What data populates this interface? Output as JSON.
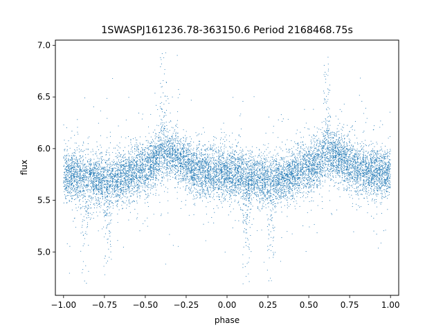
{
  "chart_data": {
    "type": "scatter",
    "title": "1SWASPJ161236.78-363150.6 Period 2168468.75s",
    "xlabel": "phase",
    "ylabel": "flux",
    "xlim": [
      -1.05,
      1.05
    ],
    "ylim": [
      4.58,
      7.05
    ],
    "xticks": [
      -1.0,
      -0.75,
      -0.5,
      -0.25,
      0.0,
      0.25,
      0.5,
      0.75,
      1.0
    ],
    "xtick_labels": [
      "−1.00",
      "−0.75",
      "−0.50",
      "−0.25",
      "0.00",
      "0.25",
      "0.50",
      "0.75",
      "1.00"
    ],
    "yticks": [
      5.0,
      5.5,
      6.0,
      6.5,
      7.0
    ],
    "ytick_labels": [
      "5.0",
      "5.5",
      "6.0",
      "6.5",
      "7.0"
    ],
    "grid": false,
    "series": [
      {
        "color": "#1f77b4",
        "marker_size": 1,
        "point_count_approx": 12000,
        "baseline_profile": {
          "phase": [
            0.0,
            0.05,
            0.1,
            0.15,
            0.2,
            0.25,
            0.3,
            0.35,
            0.4,
            0.45,
            0.5,
            0.55,
            0.6,
            0.65,
            0.7,
            0.75,
            0.8,
            0.85,
            0.9,
            0.95,
            1.0
          ],
          "median_flux": [
            5.76,
            5.75,
            5.74,
            5.73,
            5.7,
            5.7,
            5.71,
            5.72,
            5.73,
            5.8,
            5.82,
            5.86,
            5.92,
            5.94,
            5.9,
            5.85,
            5.8,
            5.78,
            5.78,
            5.77,
            5.76
          ]
        },
        "flux_range": [
          4.68,
          6.94
        ],
        "phase_range": [
          -1.0,
          1.0
        ],
        "notable_features": {
          "dips_near_phase": [
            -0.87,
            -0.73,
            0.12,
            0.27
          ],
          "peaks_near_phase": [
            -0.39,
            0.61
          ]
        }
      }
    ]
  }
}
